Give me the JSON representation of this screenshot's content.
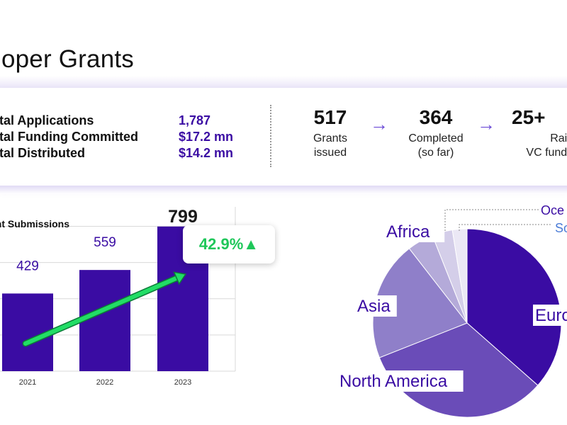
{
  "page": {
    "title": "loper Grants"
  },
  "stats": [
    {
      "label": "otal Applications",
      "value": "1,787"
    },
    {
      "label": "otal Funding Committed",
      "value": "$17.2 mn"
    },
    {
      "label": "otal Distributed",
      "value": "$14.2 mn"
    }
  ],
  "funnel": [
    {
      "number": "517",
      "caption": "Grants\nissued"
    },
    {
      "arrow": "→"
    },
    {
      "number": "364",
      "caption": "Completed\n(so far)"
    },
    {
      "arrow": "→"
    },
    {
      "number": "25+",
      "caption": "Raised\nVC funding/"
    }
  ],
  "growth_callout": {
    "text": "42.9%",
    "icon": "up-triangle-icon",
    "color": "#1fc75a"
  },
  "colors": {
    "bar": "#3a0ca3",
    "accent": "#3a0ca3",
    "arrow": "#22dd66"
  },
  "chart_data": [
    {
      "type": "bar",
      "title": "ant Submissions",
      "categories": [
        "2021",
        "2022",
        "2023"
      ],
      "values": [
        429,
        559,
        799
      ],
      "ylim": [
        0,
        900
      ],
      "grid": true,
      "xlabel": "",
      "ylabel": ""
    },
    {
      "type": "pie",
      "title": "",
      "slices": [
        {
          "label": "Euro",
          "value": 36.5,
          "color": "#3a0ca3"
        },
        {
          "label": "North America",
          "value": 32.5,
          "color": "#6a4cb8"
        },
        {
          "label": "Asia",
          "value": 20.5,
          "color": "#8f7fc9"
        },
        {
          "label": "Africa",
          "value": 4.5,
          "color": "#b4aad9"
        },
        {
          "label": "Oce",
          "value": 3.5,
          "color": "#d4cee9"
        },
        {
          "label": "So",
          "value": 2.5,
          "color": "#ebe8f5"
        }
      ]
    }
  ]
}
